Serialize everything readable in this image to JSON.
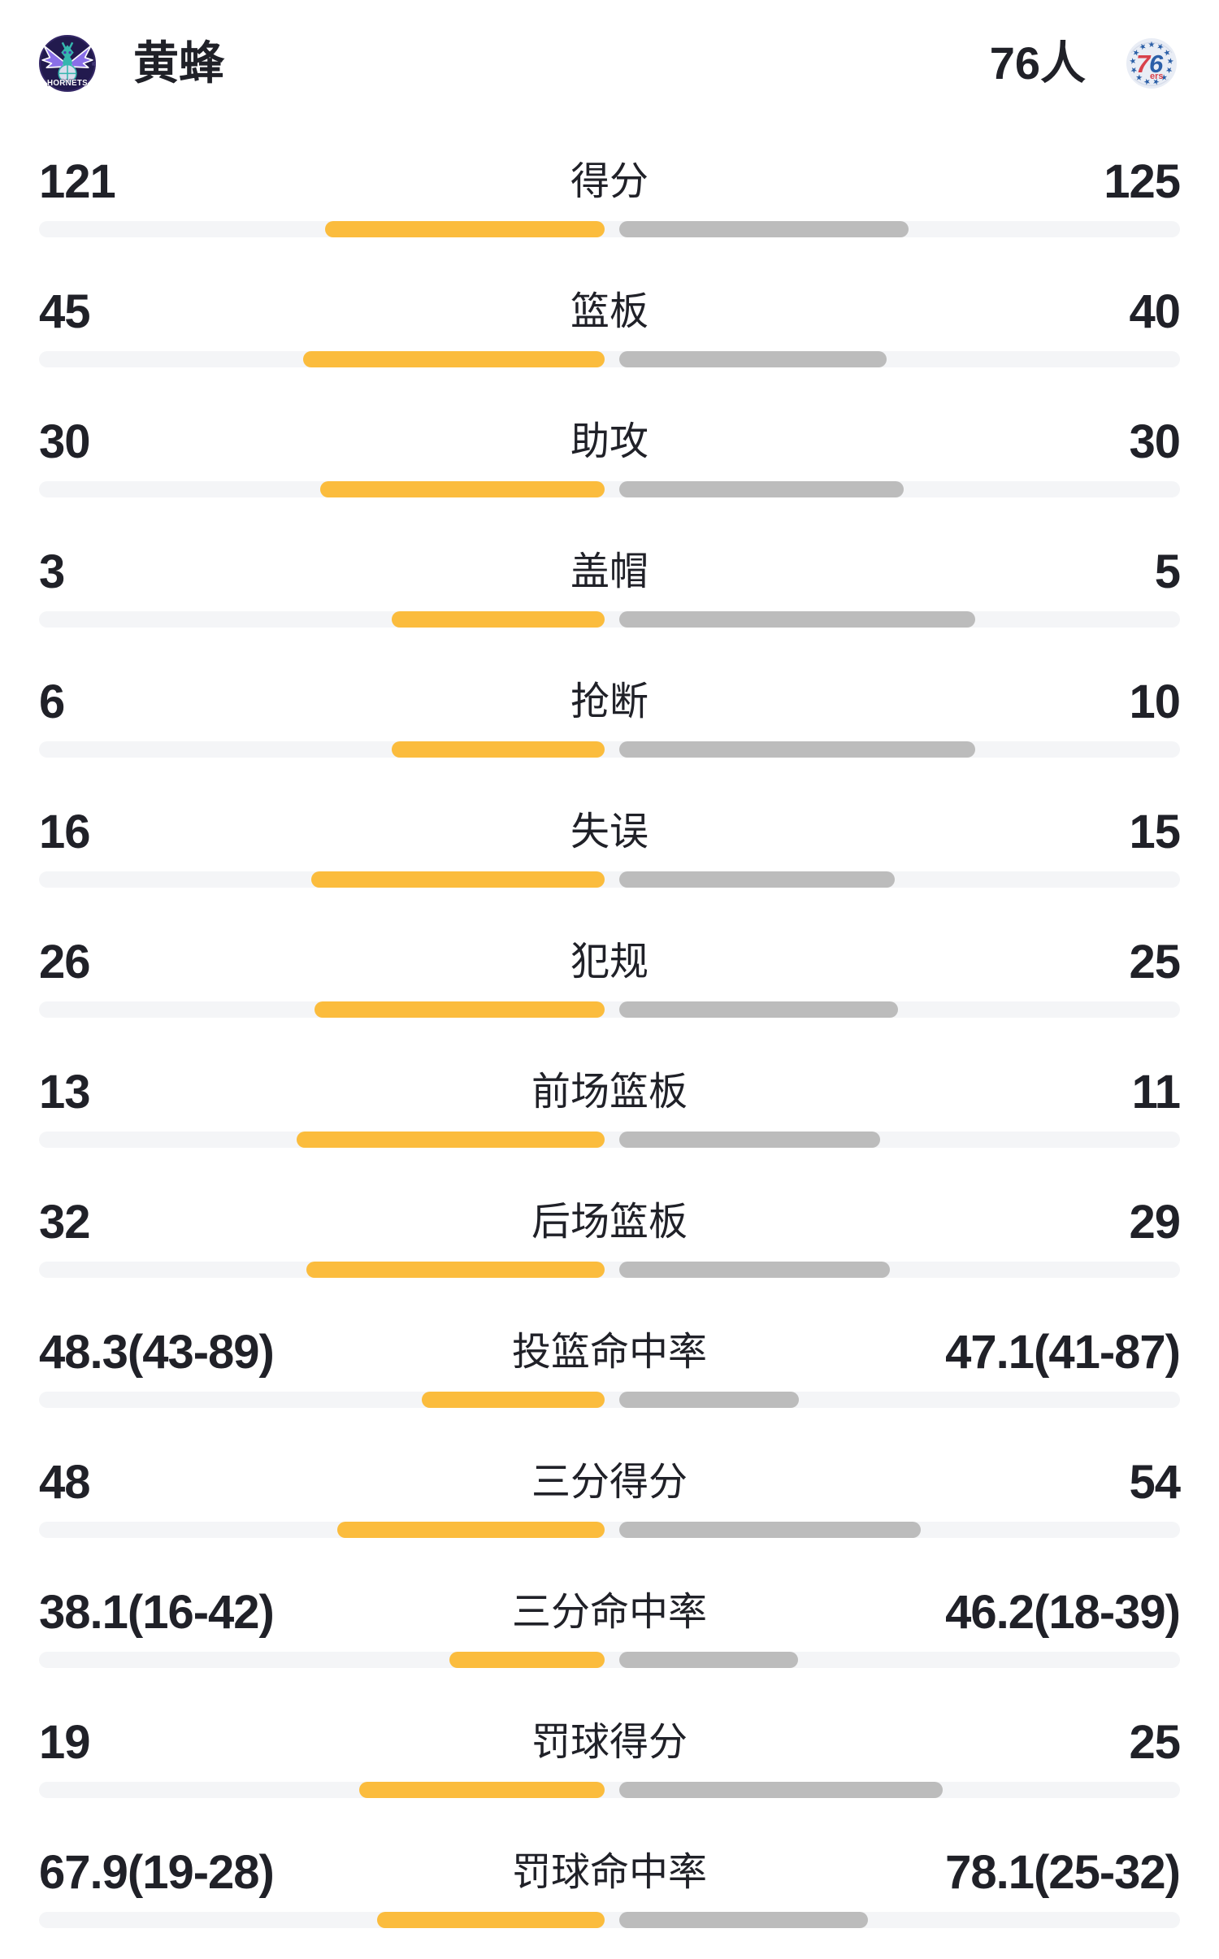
{
  "header": {
    "home": {
      "name": "黄蜂",
      "logo_text": "HORNETS",
      "logo_reg": "®"
    },
    "away": {
      "name": "76人",
      "logo_digit_red": "7",
      "logo_digit_blue": "6",
      "logo_suffix": "ers"
    }
  },
  "colors": {
    "home_bar": "#FBBC3D",
    "away_bar": "#BCBCBC",
    "track": "#F4F5F7",
    "text": "#202128",
    "background": "#FFFFFF"
  },
  "stats": [
    {
      "label": "得分",
      "home": "121",
      "away": "125",
      "home_len": 344,
      "away_len": 356
    },
    {
      "label": "篮板",
      "home": "45",
      "away": "40",
      "home_len": 371,
      "away_len": 329
    },
    {
      "label": "助攻",
      "home": "30",
      "away": "30",
      "home_len": 350,
      "away_len": 350
    },
    {
      "label": "盖帽",
      "home": "3",
      "away": "5",
      "home_len": 262,
      "away_len": 438
    },
    {
      "label": "抢断",
      "home": "6",
      "away": "10",
      "home_len": 262,
      "away_len": 438
    },
    {
      "label": "失误",
      "home": "16",
      "away": "15",
      "home_len": 361,
      "away_len": 339
    },
    {
      "label": "犯规",
      "home": "26",
      "away": "25",
      "home_len": 357,
      "away_len": 343
    },
    {
      "label": "前场篮板",
      "home": "13",
      "away": "11",
      "home_len": 379,
      "away_len": 321
    },
    {
      "label": "后场篮板",
      "home": "32",
      "away": "29",
      "home_len": 367,
      "away_len": 333
    },
    {
      "label": "投篮命中率",
      "home": "48.3(43-89)",
      "away": "47.1(41-87)",
      "home_len": 225,
      "away_len": 221
    },
    {
      "label": "三分得分",
      "home": "48",
      "away": "54",
      "home_len": 329,
      "away_len": 371
    },
    {
      "label": "三分命中率",
      "home": "38.1(16-42)",
      "away": "46.2(18-39)",
      "home_len": 191,
      "away_len": 220
    },
    {
      "label": "罚球得分",
      "home": "19",
      "away": "25",
      "home_len": 302,
      "away_len": 398
    },
    {
      "label": "罚球命中率",
      "home": "67.9(19-28)",
      "away": "78.1(25-32)",
      "home_len": 280,
      "away_len": 306
    }
  ]
}
